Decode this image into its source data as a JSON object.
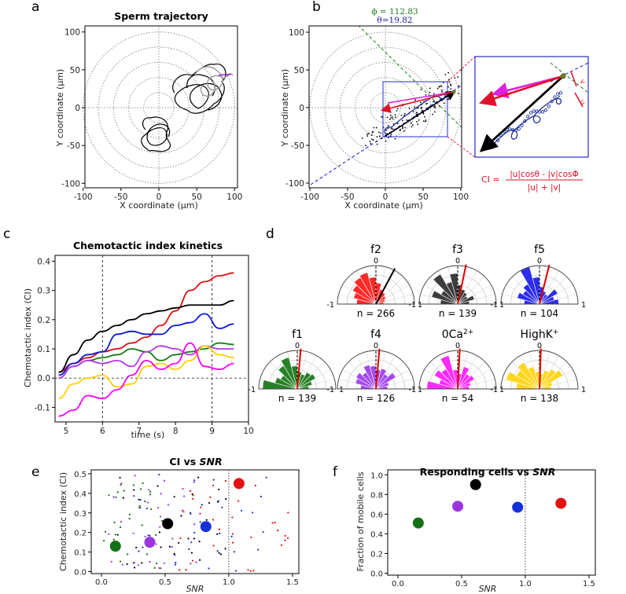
{
  "chart_data": [
    {
      "panel": "a",
      "type": "polar-trajectory",
      "title": "Sperm trajectory",
      "xlabel": "X coordinate (μm)",
      "ylabel": "Y coordinate (μm)",
      "xlim": [
        -100,
        100
      ],
      "ylim": [
        -100,
        100
      ],
      "xticks": [
        -100,
        -50,
        0,
        50,
        100
      ],
      "yticks": [
        -100,
        -50,
        0,
        50,
        100
      ],
      "rings": [
        20,
        40,
        60,
        80,
        100
      ]
    },
    {
      "panel": "b",
      "type": "polar-trajectory",
      "xlabel": "X coordinate (μm)",
      "ylabel": "Y coordinate (μm)",
      "xlim": [
        -100,
        100
      ],
      "ylim": [
        -100,
        100
      ],
      "xticks": [
        -100,
        -50,
        0,
        50,
        100
      ],
      "yticks": [
        -100,
        -50,
        0,
        50,
        100
      ],
      "annotations": {
        "phi": "ϕ = 112.83",
        "theta": "θ=19.82",
        "u": "u",
        "v": "v"
      },
      "formula": {
        "lhs": "CI =",
        "numerator": "|u|cosθ - |v|cosΦ",
        "denominator": "|u| + |v|"
      }
    },
    {
      "panel": "c",
      "type": "line",
      "title": "Chemotactic index kinetics",
      "xlabel": "time (s)",
      "ylabel": "Chemotactic index (CI)",
      "xlim": [
        4.7,
        10
      ],
      "ylim": [
        -0.15,
        0.42
      ],
      "xticks": [
        5,
        6,
        7,
        8,
        9,
        10
      ],
      "yticks": [
        -0.1,
        0.0,
        0.1,
        0.2,
        0.3,
        0.4
      ],
      "vlines": [
        6,
        9
      ],
      "series": [
        {
          "color": "#e01010",
          "x": [
            4.8,
            5.2,
            5.6,
            6.0,
            6.4,
            6.8,
            7.2,
            7.6,
            8.0,
            8.4,
            8.8,
            9.2,
            9.6
          ],
          "y": [
            0.02,
            0.05,
            0.07,
            0.09,
            0.1,
            0.12,
            0.14,
            0.18,
            0.23,
            0.3,
            0.33,
            0.35,
            0.36
          ]
        },
        {
          "color": "#000000",
          "x": [
            4.8,
            5.2,
            5.6,
            6.0,
            6.4,
            6.8,
            7.2,
            7.6,
            8.0,
            8.4,
            8.8,
            9.2,
            9.6
          ],
          "y": [
            0.02,
            0.08,
            0.13,
            0.16,
            0.18,
            0.2,
            0.22,
            0.23,
            0.24,
            0.25,
            0.25,
            0.25,
            0.265
          ]
        },
        {
          "color": "#0a1ad6",
          "x": [
            4.8,
            5.2,
            5.6,
            6.0,
            6.4,
            6.8,
            7.2,
            7.6,
            8.0,
            8.4,
            8.8,
            9.2,
            9.6
          ],
          "y": [
            0.01,
            0.05,
            0.08,
            0.09,
            0.15,
            0.16,
            0.15,
            0.15,
            0.18,
            0.19,
            0.22,
            0.17,
            0.185
          ]
        },
        {
          "color": "#1b7a1b",
          "x": [
            4.8,
            5.2,
            5.6,
            6.0,
            6.4,
            6.8,
            7.2,
            7.6,
            8.0,
            8.4,
            8.8,
            9.2,
            9.6
          ],
          "y": [
            0.0,
            0.04,
            0.06,
            0.07,
            0.08,
            0.1,
            0.09,
            0.06,
            0.08,
            0.09,
            0.1,
            0.12,
            0.115
          ]
        },
        {
          "color": "#b03ae8",
          "x": [
            4.8,
            5.2,
            5.6,
            6.0,
            6.4,
            6.8,
            7.2,
            7.6,
            8.0,
            8.4,
            8.8,
            9.2,
            9.6
          ],
          "y": [
            0.0,
            0.04,
            0.06,
            0.05,
            0.06,
            0.04,
            0.09,
            0.11,
            0.1,
            0.08,
            0.11,
            0.1,
            0.1
          ]
        },
        {
          "color": "#ffd000",
          "x": [
            4.8,
            5.2,
            5.6,
            6.0,
            6.4,
            6.8,
            7.2,
            7.6,
            8.0,
            8.4,
            8.8,
            9.2,
            9.6
          ],
          "y": [
            -0.07,
            -0.02,
            0.0,
            0.01,
            -0.03,
            -0.02,
            0.04,
            0.05,
            0.03,
            0.06,
            0.11,
            0.08,
            0.07
          ]
        },
        {
          "color": "#ff00ff",
          "x": [
            4.8,
            5.2,
            5.6,
            6.0,
            6.4,
            6.8,
            7.2,
            7.6,
            8.0,
            8.4,
            8.8,
            9.2,
            9.6
          ],
          "y": [
            -0.13,
            -0.11,
            -0.06,
            -0.07,
            -0.04,
            0.01,
            0.06,
            0.03,
            0.05,
            0.12,
            0.04,
            0.03,
            0.05
          ]
        }
      ]
    },
    {
      "panel": "d",
      "type": "polar-rose",
      "roses": [
        {
          "label": "f2",
          "n": "n = 266",
          "color": "#ff2020",
          "angle_deg": 28,
          "values": [
            0.5,
            0.6,
            0.7,
            0.8,
            0.85,
            0.7,
            0.55,
            0.4,
            0.35,
            0.3,
            0.25,
            0.2
          ]
        },
        {
          "label": "f3",
          "n": "n = 139",
          "color": "#333333",
          "angle_deg": 12,
          "values": [
            0.45,
            0.7,
            0.5,
            0.9,
            0.6,
            0.8,
            0.5,
            0.4,
            0.35,
            0.3,
            0.45,
            0.3
          ]
        },
        {
          "label": "f5",
          "n": "n = 104",
          "color": "#2222ee",
          "angle_deg": 14,
          "values": [
            0.4,
            0.6,
            0.5,
            0.6,
            1.0,
            0.7,
            0.45,
            0.35,
            0.3,
            0.55,
            0.4,
            0.5
          ]
        },
        {
          "label": "f1",
          "n": "n = 139",
          "color": "#1b7a1b",
          "angle_deg": 5,
          "values": [
            0.9,
            0.6,
            0.5,
            0.7,
            0.85,
            0.6,
            0.45,
            0.4,
            0.5,
            0.55,
            0.4,
            0.3
          ]
        },
        {
          "label": "f4",
          "n": "n = 126",
          "color": "#a040ee",
          "angle_deg": 5,
          "values": [
            0.4,
            0.55,
            0.6,
            0.5,
            0.65,
            0.6,
            0.5,
            0.55,
            0.45,
            0.6,
            0.35,
            0.3
          ]
        },
        {
          "label": "0Ca",
          "sup": "2+",
          "n": "n = 54",
          "color": "#ff20ff",
          "angle_deg": 3,
          "values": [
            0.8,
            0.5,
            0.7,
            0.6,
            0.9,
            0.5,
            0.4,
            0.6,
            0.45,
            0.5,
            0.35,
            0.3
          ]
        },
        {
          "label": "HighK",
          "sup": "+",
          "n": "n = 138",
          "color": "#ffd414",
          "angle_deg": 2,
          "values": [
            0.6,
            0.9,
            0.7,
            0.8,
            0.6,
            0.45,
            0.4,
            0.5,
            0.6,
            0.7,
            0.35,
            0.3
          ]
        }
      ]
    },
    {
      "panel": "e",
      "type": "scatter",
      "title": "CI vs SNR",
      "xlabel": "SNR",
      "ylabel": "Chemotactic index (CI)",
      "xlim": [
        -0.08,
        1.55
      ],
      "ylim": [
        -0.01,
        0.52
      ],
      "xticks": [
        0.0,
        0.5,
        1.0,
        1.5
      ],
      "yticks": [
        0.0,
        0.1,
        0.2,
        0.3,
        0.4,
        0.5
      ],
      "vline": 1.0,
      "means": [
        {
          "color": "#167016",
          "x": 0.11,
          "y": 0.13
        },
        {
          "color": "#9b36de",
          "x": 0.38,
          "y": 0.15
        },
        {
          "color": "#000000",
          "x": 0.52,
          "y": 0.245
        },
        {
          "color": "#1530d8",
          "x": 0.82,
          "y": 0.23
        },
        {
          "color": "#e51010",
          "x": 1.08,
          "y": 0.45
        }
      ]
    },
    {
      "panel": "f",
      "type": "scatter",
      "title": "Responding cells vs SNR",
      "xlabel": "SNR",
      "ylabel": "Fraction of mobile cells",
      "xlim": [
        -0.08,
        1.55
      ],
      "ylim": [
        -0.02,
        1.05
      ],
      "xticks": [
        0.0,
        0.5,
        1.0,
        1.5
      ],
      "yticks": [
        0.0,
        0.2,
        0.4,
        0.6,
        0.8,
        1.0
      ],
      "vline": 1.0,
      "points": [
        {
          "color": "#167016",
          "x": 0.16,
          "y": 0.51
        },
        {
          "color": "#9b36de",
          "x": 0.47,
          "y": 0.68
        },
        {
          "color": "#000000",
          "x": 0.61,
          "y": 0.9
        },
        {
          "color": "#1530d8",
          "x": 0.94,
          "y": 0.67
        },
        {
          "color": "#e51010",
          "x": 1.28,
          "y": 0.71
        }
      ]
    }
  ]
}
